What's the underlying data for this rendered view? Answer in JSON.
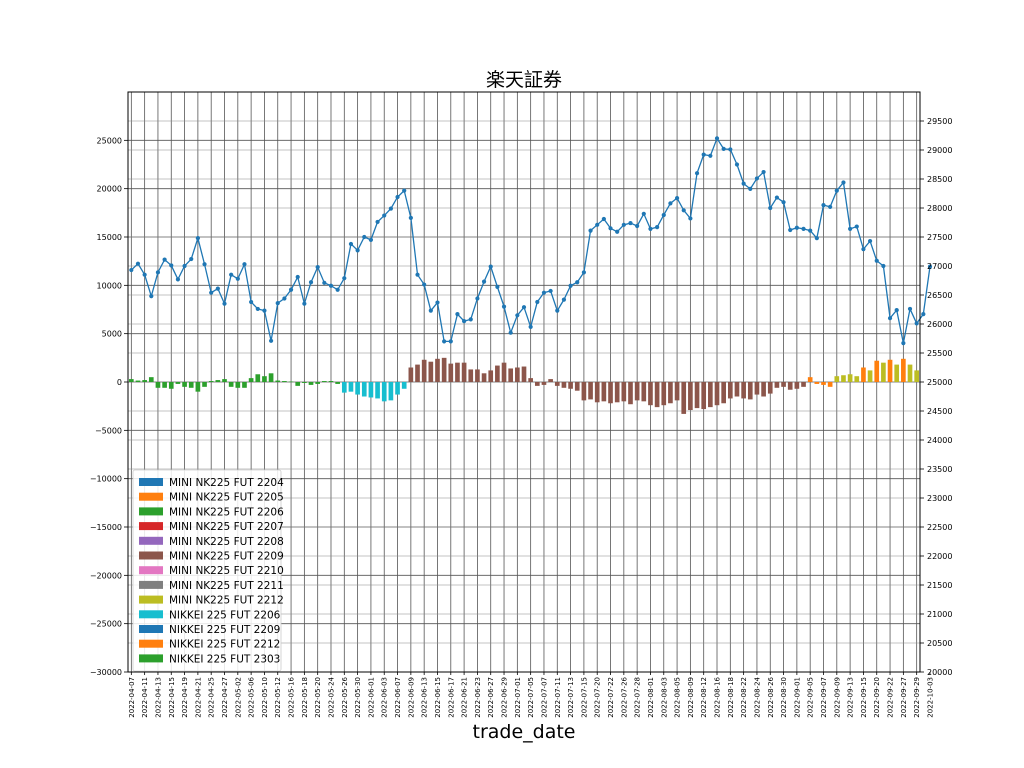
{
  "chart_data": {
    "type": "bar",
    "title": "楽天証券",
    "xlabel": "trade_date",
    "ylabel": "",
    "ylim": [
      -30000,
      30000
    ],
    "y_ticks": [
      -30000,
      -25000,
      -20000,
      -15000,
      -10000,
      -5000,
      0,
      5000,
      10000,
      15000,
      20000,
      25000
    ],
    "y2lim": [
      20000,
      30000
    ],
    "y2_ticks": [
      20000,
      20500,
      21000,
      21500,
      22000,
      22500,
      23000,
      23500,
      24000,
      24500,
      25000,
      25500,
      26000,
      26500,
      27000,
      27500,
      28000,
      28500,
      29000,
      29500
    ],
    "grid": true,
    "legend_position": "lower-left",
    "x_tick_labels": [
      "2022-04-07",
      "2022-04-11",
      "2022-04-13",
      "2022-04-15",
      "2022-04-19",
      "2022-04-21",
      "2022-04-25",
      "2022-04-27",
      "2022-05-02",
      "2022-05-06",
      "2022-05-10",
      "2022-05-12",
      "2022-05-16",
      "2022-05-18",
      "2022-05-20",
      "2022-05-24",
      "2022-05-26",
      "2022-05-30",
      "2022-06-01",
      "2022-06-03",
      "2022-06-07",
      "2022-06-09",
      "2022-06-13",
      "2022-06-15",
      "2022-06-17",
      "2022-06-21",
      "2022-06-23",
      "2022-06-27",
      "2022-06-29",
      "2022-07-01",
      "2022-07-05",
      "2022-07-07",
      "2022-07-11",
      "2022-07-13",
      "2022-07-15",
      "2022-07-20",
      "2022-07-22",
      "2022-07-26",
      "2022-07-28",
      "2022-08-01",
      "2022-08-03",
      "2022-08-05",
      "2022-08-09",
      "2022-08-12",
      "2022-08-16",
      "2022-08-18",
      "2022-08-22",
      "2022-08-24",
      "2022-08-26",
      "2022-08-30",
      "2022-09-01",
      "2022-09-05",
      "2022-09-07",
      "2022-09-09",
      "2022-09-13",
      "2022-09-15",
      "2022-09-20",
      "2022-09-22",
      "2022-09-27",
      "2022-09-29",
      "2022-10-03"
    ],
    "legend": [
      {
        "name": "MINI NK225 FUT 2204",
        "color": "#1f77b4"
      },
      {
        "name": "MINI NK225 FUT 2205",
        "color": "#ff7f0e"
      },
      {
        "name": "MINI NK225 FUT 2206",
        "color": "#2ca02c"
      },
      {
        "name": "MINI NK225 FUT 2207",
        "color": "#d62728"
      },
      {
        "name": "MINI NK225 FUT 2208",
        "color": "#9467bd"
      },
      {
        "name": "MINI NK225 FUT 2209",
        "color": "#8c564b"
      },
      {
        "name": "MINI NK225 FUT 2210",
        "color": "#e377c2"
      },
      {
        "name": "MINI NK225 FUT 2211",
        "color": "#7f7f7f"
      },
      {
        "name": "MINI NK225 FUT 2212",
        "color": "#bcbd22"
      },
      {
        "name": "NIKKEI 225 FUT 2206",
        "color": "#17becf"
      },
      {
        "name": "NIKKEI 225 FUT 2209",
        "color": "#1f77b4"
      },
      {
        "name": "NIKKEI 225 FUT 2212",
        "color": "#ff7f0e"
      },
      {
        "name": "NIKKEI 225 FUT 2303",
        "color": "#2ca02c"
      }
    ],
    "line_color": "#1f77b4",
    "bars": [
      {
        "v": 300,
        "c": "#2ca02c"
      },
      {
        "v": 150,
        "c": "#2ca02c"
      },
      {
        "v": 200,
        "c": "#2ca02c"
      },
      {
        "v": 500,
        "c": "#2ca02c"
      },
      {
        "v": -600,
        "c": "#2ca02c"
      },
      {
        "v": -600,
        "c": "#2ca02c"
      },
      {
        "v": -700,
        "c": "#2ca02c"
      },
      {
        "v": -200,
        "c": "#2ca02c"
      },
      {
        "v": -500,
        "c": "#2ca02c"
      },
      {
        "v": -600,
        "c": "#2ca02c"
      },
      {
        "v": -1000,
        "c": "#2ca02c"
      },
      {
        "v": -500,
        "c": "#2ca02c"
      },
      {
        "v": 100,
        "c": "#2ca02c"
      },
      {
        "v": 200,
        "c": "#2ca02c"
      },
      {
        "v": 300,
        "c": "#2ca02c"
      },
      {
        "v": -500,
        "c": "#2ca02c"
      },
      {
        "v": -600,
        "c": "#2ca02c"
      },
      {
        "v": -600,
        "c": "#2ca02c"
      },
      {
        "v": 400,
        "c": "#2ca02c"
      },
      {
        "v": 800,
        "c": "#2ca02c"
      },
      {
        "v": 600,
        "c": "#2ca02c"
      },
      {
        "v": 900,
        "c": "#2ca02c"
      },
      {
        "v": 150,
        "c": "#2ca02c"
      },
      {
        "v": 100,
        "c": "#2ca02c"
      },
      {
        "v": 50,
        "c": "#2ca02c"
      },
      {
        "v": -400,
        "c": "#2ca02c"
      },
      {
        "v": -100,
        "c": "#2ca02c"
      },
      {
        "v": -300,
        "c": "#2ca02c"
      },
      {
        "v": -200,
        "c": "#2ca02c"
      },
      {
        "v": 100,
        "c": "#2ca02c"
      },
      {
        "v": 100,
        "c": "#2ca02c"
      },
      {
        "v": -200,
        "c": "#2ca02c"
      },
      {
        "v": -1100,
        "c": "#17becf"
      },
      {
        "v": -1000,
        "c": "#17becf"
      },
      {
        "v": -1300,
        "c": "#17becf"
      },
      {
        "v": -1500,
        "c": "#17becf"
      },
      {
        "v": -1600,
        "c": "#17becf"
      },
      {
        "v": -1700,
        "c": "#17becf"
      },
      {
        "v": -2000,
        "c": "#17becf"
      },
      {
        "v": -1900,
        "c": "#17becf"
      },
      {
        "v": -1300,
        "c": "#17becf"
      },
      {
        "v": -700,
        "c": "#17becf"
      },
      {
        "v": 1500,
        "c": "#8c564b"
      },
      {
        "v": 1800,
        "c": "#8c564b"
      },
      {
        "v": 2300,
        "c": "#8c564b"
      },
      {
        "v": 2100,
        "c": "#8c564b"
      },
      {
        "v": 2400,
        "c": "#8c564b"
      },
      {
        "v": 2500,
        "c": "#8c564b"
      },
      {
        "v": 1900,
        "c": "#8c564b"
      },
      {
        "v": 2000,
        "c": "#8c564b"
      },
      {
        "v": 2000,
        "c": "#8c564b"
      },
      {
        "v": 1300,
        "c": "#8c564b"
      },
      {
        "v": 1300,
        "c": "#8c564b"
      },
      {
        "v": 900,
        "c": "#8c564b"
      },
      {
        "v": 1200,
        "c": "#8c564b"
      },
      {
        "v": 1700,
        "c": "#8c564b"
      },
      {
        "v": 2000,
        "c": "#8c564b"
      },
      {
        "v": 1400,
        "c": "#8c564b"
      },
      {
        "v": 1500,
        "c": "#8c564b"
      },
      {
        "v": 1600,
        "c": "#8c564b"
      },
      {
        "v": 400,
        "c": "#8c564b"
      },
      {
        "v": -400,
        "c": "#8c564b"
      },
      {
        "v": -300,
        "c": "#8c564b"
      },
      {
        "v": 300,
        "c": "#8c564b"
      },
      {
        "v": -400,
        "c": "#8c564b"
      },
      {
        "v": -600,
        "c": "#8c564b"
      },
      {
        "v": -700,
        "c": "#8c564b"
      },
      {
        "v": -900,
        "c": "#8c564b"
      },
      {
        "v": -1900,
        "c": "#8c564b"
      },
      {
        "v": -1800,
        "c": "#8c564b"
      },
      {
        "v": -2100,
        "c": "#8c564b"
      },
      {
        "v": -2000,
        "c": "#8c564b"
      },
      {
        "v": -2200,
        "c": "#8c564b"
      },
      {
        "v": -2100,
        "c": "#8c564b"
      },
      {
        "v": -2000,
        "c": "#8c564b"
      },
      {
        "v": -2300,
        "c": "#8c564b"
      },
      {
        "v": -1900,
        "c": "#8c564b"
      },
      {
        "v": -2000,
        "c": "#8c564b"
      },
      {
        "v": -2400,
        "c": "#8c564b"
      },
      {
        "v": -2600,
        "c": "#8c564b"
      },
      {
        "v": -2400,
        "c": "#8c564b"
      },
      {
        "v": -2200,
        "c": "#8c564b"
      },
      {
        "v": -1900,
        "c": "#8c564b"
      },
      {
        "v": -3300,
        "c": "#8c564b"
      },
      {
        "v": -2900,
        "c": "#8c564b"
      },
      {
        "v": -2700,
        "c": "#8c564b"
      },
      {
        "v": -2800,
        "c": "#8c564b"
      },
      {
        "v": -2600,
        "c": "#8c564b"
      },
      {
        "v": -2400,
        "c": "#8c564b"
      },
      {
        "v": -2200,
        "c": "#8c564b"
      },
      {
        "v": -1700,
        "c": "#8c564b"
      },
      {
        "v": -1500,
        "c": "#8c564b"
      },
      {
        "v": -1700,
        "c": "#8c564b"
      },
      {
        "v": -1800,
        "c": "#8c564b"
      },
      {
        "v": -1300,
        "c": "#8c564b"
      },
      {
        "v": -1500,
        "c": "#8c564b"
      },
      {
        "v": -1200,
        "c": "#8c564b"
      },
      {
        "v": -600,
        "c": "#8c564b"
      },
      {
        "v": -500,
        "c": "#8c564b"
      },
      {
        "v": -800,
        "c": "#8c564b"
      },
      {
        "v": -700,
        "c": "#8c564b"
      },
      {
        "v": -500,
        "c": "#8c564b"
      },
      {
        "v": 500,
        "c": "#ff7f0e"
      },
      {
        "v": -200,
        "c": "#ff7f0e"
      },
      {
        "v": -300,
        "c": "#ff7f0e"
      },
      {
        "v": -500,
        "c": "#ff7f0e"
      },
      {
        "v": 600,
        "c": "#bcbd22"
      },
      {
        "v": 700,
        "c": "#bcbd22"
      },
      {
        "v": 800,
        "c": "#bcbd22"
      },
      {
        "v": 600,
        "c": "#bcbd22"
      },
      {
        "v": 1500,
        "c": "#ff7f0e"
      },
      {
        "v": 1200,
        "c": "#bcbd22"
      },
      {
        "v": 2200,
        "c": "#ff7f0e"
      },
      {
        "v": 2000,
        "c": "#bcbd22"
      },
      {
        "v": 2300,
        "c": "#ff7f0e"
      },
      {
        "v": 1800,
        "c": "#bcbd22"
      },
      {
        "v": 2400,
        "c": "#ff7f0e"
      },
      {
        "v": 1800,
        "c": "#bcbd22"
      },
      {
        "v": 1200,
        "c": "#bcbd22"
      }
    ],
    "line": [
      26930,
      27040,
      26850,
      26480,
      26890,
      27110,
      27010,
      26770,
      27000,
      27120,
      27480,
      27030,
      26540,
      26610,
      26350,
      26850,
      26780,
      27030,
      26380,
      26260,
      26230,
      25710,
      26360,
      26440,
      26590,
      26810,
      26350,
      26720,
      26980,
      26710,
      26660,
      26590,
      26790,
      27380,
      27270,
      27500,
      27450,
      27760,
      27870,
      27990,
      28190,
      28300,
      27830,
      26850,
      26680,
      26230,
      26370,
      25700,
      25700,
      26170,
      26050,
      26080,
      26440,
      26730,
      26990,
      26640,
      26300,
      25850,
      26150,
      26290,
      25950,
      26380,
      26540,
      26570,
      26230,
      26420,
      26660,
      26720,
      26890,
      27610,
      27710,
      27810,
      27650,
      27590,
      27710,
      27740,
      27690,
      27900,
      27640,
      27670,
      27880,
      28080,
      28170,
      27960,
      27820,
      28600,
      28920,
      28900,
      29200,
      29020,
      29010,
      28750,
      28420,
      28330,
      28510,
      28620,
      28000,
      28180,
      28100,
      27620,
      27660,
      27640,
      27610,
      27480,
      28050,
      28020,
      28300,
      28440,
      27640,
      27680,
      27290,
      27430,
      27090,
      27000,
      26100,
      26240,
      25670,
      26260,
      26010,
      26170,
      26990
    ]
  }
}
